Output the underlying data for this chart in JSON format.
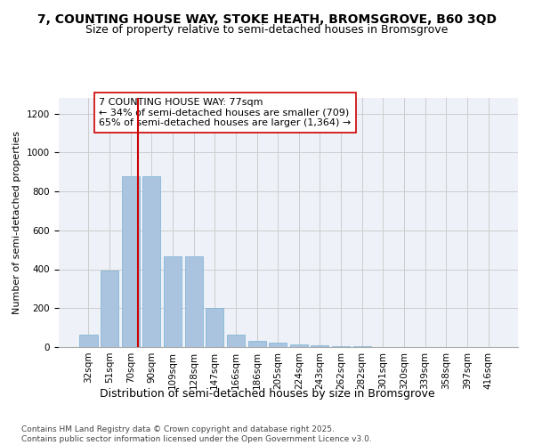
{
  "title1": "7, COUNTING HOUSE WAY, STOKE HEATH, BROMSGROVE, B60 3QD",
  "title2": "Size of property relative to semi-detached houses in Bromsgrove",
  "xlabel": "Distribution of semi-detached houses by size in Bromsgrove",
  "ylabel": "Number of semi-detached properties",
  "categories": [
    "32sqm",
    "51sqm",
    "70sqm",
    "90sqm",
    "109sqm",
    "128sqm",
    "147sqm",
    "166sqm",
    "186sqm",
    "205sqm",
    "224sqm",
    "243sqm",
    "262sqm",
    "282sqm",
    "301sqm",
    "320sqm",
    "339sqm",
    "358sqm",
    "397sqm",
    "416sqm"
  ],
  "values": [
    65,
    395,
    880,
    880,
    465,
    465,
    200,
    65,
    30,
    22,
    14,
    10,
    5,
    3,
    2,
    1,
    1,
    1,
    0,
    0
  ],
  "bar_color": "#aac4e0",
  "bar_edge_color": "#7aafd4",
  "grid_color": "#cccccc",
  "background_color": "#eef2f8",
  "red_line_color": "#cc0000",
  "annotation_text": "7 COUNTING HOUSE WAY: 77sqm\n← 34% of semi-detached houses are smaller (709)\n65% of semi-detached houses are larger (1,364) →",
  "annotation_box_edge": "#cc0000",
  "ylim": [
    0,
    1280
  ],
  "yticks": [
    0,
    200,
    400,
    600,
    800,
    1000,
    1200
  ],
  "footer": "Contains HM Land Registry data © Crown copyright and database right 2025.\nContains public sector information licensed under the Open Government Licence v3.0.",
  "title1_fontsize": 10,
  "title2_fontsize": 9,
  "xlabel_fontsize": 9,
  "ylabel_fontsize": 8,
  "tick_fontsize": 7.5,
  "annotation_fontsize": 8,
  "footer_fontsize": 6.5
}
